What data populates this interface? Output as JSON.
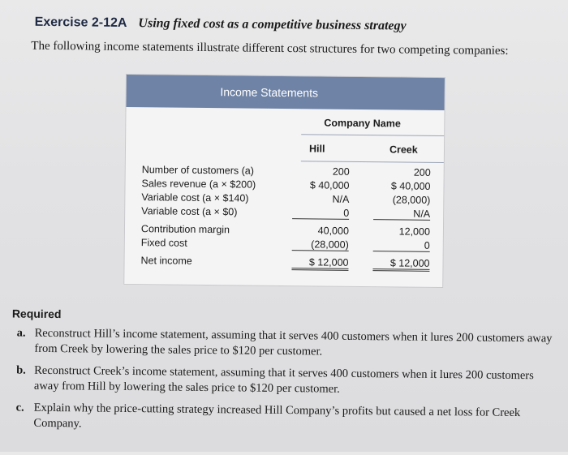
{
  "header": {
    "exercise": "Exercise 2-12A",
    "title": "Using fixed cost as a competitive business strategy",
    "intro": "The following income statements illustrate different cost structures for two competing companies:"
  },
  "table": {
    "title": "Income Statements",
    "company_name_label": "Company Name",
    "columns": [
      "Hill",
      "Creek"
    ],
    "rows": [
      {
        "label": "Number of customers (a)",
        "hill": "200",
        "creek": "200"
      },
      {
        "label": "Sales revenue (a × $200)",
        "hill": "$ 40,000",
        "creek": "$ 40,000"
      },
      {
        "label": "Variable cost (a × $140)",
        "hill": "N/A",
        "creek": "(28,000)"
      },
      {
        "label": "Variable cost (a × $0)",
        "hill": "0",
        "creek": "N/A"
      },
      {
        "label": "Contribution margin",
        "hill": "40,000",
        "creek": "12,000"
      },
      {
        "label": "Fixed cost",
        "hill": "(28,000)",
        "creek": "0"
      },
      {
        "label": "Net income",
        "hill": "$ 12,000",
        "creek": "$ 12,000"
      }
    ]
  },
  "required": {
    "heading": "Required",
    "items": [
      {
        "letter": "a.",
        "text": "Reconstruct Hill’s income statement, assuming that it serves 400 customers when it lures 200 customers away from Creek by lowering the sales price to $120 per customer."
      },
      {
        "letter": "b.",
        "text": "Reconstruct Creek’s income statement, assuming that it serves 400 customers when it lures 200 customers away from Hill by lowering the sales price to $120 per customer."
      },
      {
        "letter": "c.",
        "text": "Explain why the price-cutting strategy increased Hill Company’s profits but caused a net loss for Creek Company."
      }
    ]
  }
}
